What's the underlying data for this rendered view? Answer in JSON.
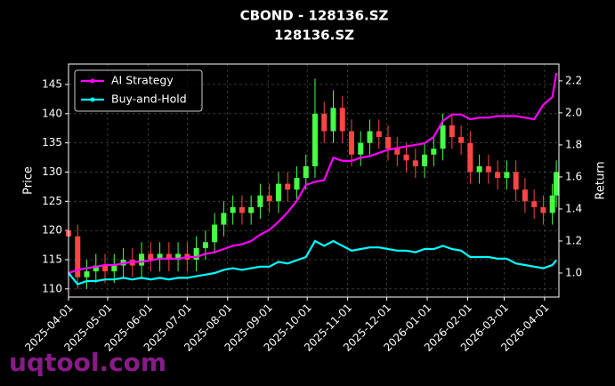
{
  "chart_data": {
    "type": "candlestick",
    "title": "CBOND - 128136.SZ",
    "subtitle": "128136.SZ",
    "ylabel": "Price",
    "y2label": "Return",
    "watermark": "uqtool.com",
    "x": [
      "2025-04-01",
      "2025-04-08",
      "2025-04-15",
      "2025-04-22",
      "2025-04-29",
      "2025-05-06",
      "2025-05-13",
      "2025-05-20",
      "2025-05-27",
      "2025-06-03",
      "2025-06-10",
      "2025-06-17",
      "2025-06-24",
      "2025-07-01",
      "2025-07-08",
      "2025-07-15",
      "2025-07-22",
      "2025-07-29",
      "2025-08-05",
      "2025-08-12",
      "2025-08-19",
      "2025-08-26",
      "2025-09-02",
      "2025-09-09",
      "2025-09-16",
      "2025-09-23",
      "2025-09-30",
      "2025-10-07",
      "2025-10-14",
      "2025-10-21",
      "2025-10-28",
      "2025-11-04",
      "2025-11-11",
      "2025-11-18",
      "2025-11-25",
      "2025-12-02",
      "2025-12-09",
      "2025-12-16",
      "2025-12-23",
      "2025-12-30",
      "2026-01-06",
      "2026-01-13",
      "2026-01-20",
      "2026-01-27",
      "2026-02-03",
      "2026-02-10",
      "2026-02-17",
      "2026-02-24",
      "2026-03-03",
      "2026-03-10",
      "2026-03-17",
      "2026-03-24",
      "2026-03-31",
      "2026-04-07",
      "2026-04-10"
    ],
    "candles": {
      "open": [
        120,
        119,
        112,
        113,
        114,
        113,
        114,
        115,
        114,
        116,
        115,
        116,
        115,
        116,
        115,
        117,
        118,
        121,
        123,
        124,
        123,
        124,
        126,
        125,
        128,
        127,
        129,
        131,
        140,
        137,
        141,
        137,
        133,
        135,
        137,
        136,
        134,
        133,
        132,
        131,
        133,
        134,
        138,
        136,
        135,
        130,
        131,
        130,
        129,
        130,
        127,
        125,
        124,
        123,
        126
      ],
      "high": [
        122,
        121,
        115,
        116,
        116,
        116,
        117,
        117,
        118,
        118,
        118,
        118,
        118,
        118,
        119,
        120,
        123,
        125,
        126,
        126,
        126,
        128,
        128,
        130,
        130,
        131,
        133,
        146,
        142,
        144,
        143,
        139,
        137,
        139,
        139,
        138,
        136,
        135,
        134,
        135,
        136,
        140,
        140,
        138,
        137,
        133,
        133,
        132,
        132,
        132,
        129,
        127,
        126,
        128,
        132
      ],
      "low": [
        111,
        110,
        110,
        111,
        111,
        111,
        112,
        112,
        112,
        113,
        113,
        113,
        113,
        113,
        113,
        115,
        116,
        119,
        121,
        121,
        121,
        122,
        123,
        123,
        125,
        125,
        127,
        129,
        135,
        135,
        135,
        131,
        131,
        133,
        134,
        132,
        131,
        130,
        129,
        129,
        131,
        132,
        134,
        133,
        128,
        128,
        128,
        127,
        127,
        125,
        123,
        122,
        121,
        121,
        124
      ],
      "close": [
        119,
        112,
        113,
        114,
        113,
        114,
        115,
        114,
        116,
        115,
        116,
        115,
        116,
        115,
        117,
        118,
        121,
        123,
        124,
        123,
        124,
        126,
        125,
        128,
        127,
        129,
        131,
        140,
        137,
        141,
        137,
        133,
        135,
        137,
        136,
        134,
        133,
        132,
        131,
        133,
        134,
        138,
        136,
        135,
        130,
        131,
        130,
        129,
        130,
        127,
        125,
        124,
        123,
        126,
        130
      ]
    },
    "up_color": "#44ff44",
    "down_color": "#ff4444",
    "series": [
      {
        "name": "AI Strategy",
        "color": "#ff00ff",
        "axis": "y2",
        "values": [
          1.0,
          1.02,
          1.03,
          1.04,
          1.05,
          1.05,
          1.06,
          1.07,
          1.07,
          1.08,
          1.09,
          1.09,
          1.09,
          1.1,
          1.1,
          1.12,
          1.13,
          1.15,
          1.17,
          1.18,
          1.2,
          1.24,
          1.27,
          1.32,
          1.38,
          1.45,
          1.55,
          1.57,
          1.58,
          1.72,
          1.7,
          1.7,
          1.72,
          1.73,
          1.75,
          1.77,
          1.78,
          1.79,
          1.8,
          1.81,
          1.85,
          1.95,
          1.99,
          1.99,
          1.96,
          1.97,
          1.97,
          1.98,
          1.98,
          1.98,
          1.97,
          1.96,
          2.05,
          2.1,
          2.25
        ]
      },
      {
        "name": "Buy-and-Hold",
        "color": "#00ffff",
        "axis": "y2",
        "values": [
          1.0,
          0.93,
          0.95,
          0.95,
          0.96,
          0.96,
          0.97,
          0.96,
          0.97,
          0.96,
          0.97,
          0.96,
          0.97,
          0.97,
          0.98,
          0.99,
          1.0,
          1.02,
          1.03,
          1.02,
          1.03,
          1.04,
          1.04,
          1.07,
          1.06,
          1.08,
          1.1,
          1.2,
          1.17,
          1.2,
          1.17,
          1.14,
          1.15,
          1.16,
          1.16,
          1.15,
          1.14,
          1.14,
          1.13,
          1.15,
          1.15,
          1.17,
          1.15,
          1.14,
          1.1,
          1.1,
          1.1,
          1.09,
          1.09,
          1.06,
          1.05,
          1.04,
          1.03,
          1.05,
          1.08
        ]
      }
    ],
    "xlim": [
      "2025-04-01",
      "2026-04-12"
    ],
    "xticks": [
      "2025-04-01",
      "2025-05-01",
      "2025-06-01",
      "2025-07-01",
      "2025-08-01",
      "2025-09-01",
      "2025-10-01",
      "2025-11-01",
      "2025-12-01",
      "2026-01-01",
      "2026-02-01",
      "2026-03-01",
      "2026-04-01"
    ],
    "ylim": [
      108.6,
      148.5
    ],
    "yticks": [
      110,
      115,
      120,
      125,
      130,
      135,
      140,
      145
    ],
    "y2lim": [
      0.85,
      2.305
    ],
    "y2ticks": [
      {
        "value": 1.0,
        "label": "1.0"
      },
      1.2,
      1.4,
      1.6,
      1.8,
      {
        "value": 2.0,
        "label": "2.0"
      },
      2.2
    ],
    "grid": true,
    "legend": "upper left"
  }
}
